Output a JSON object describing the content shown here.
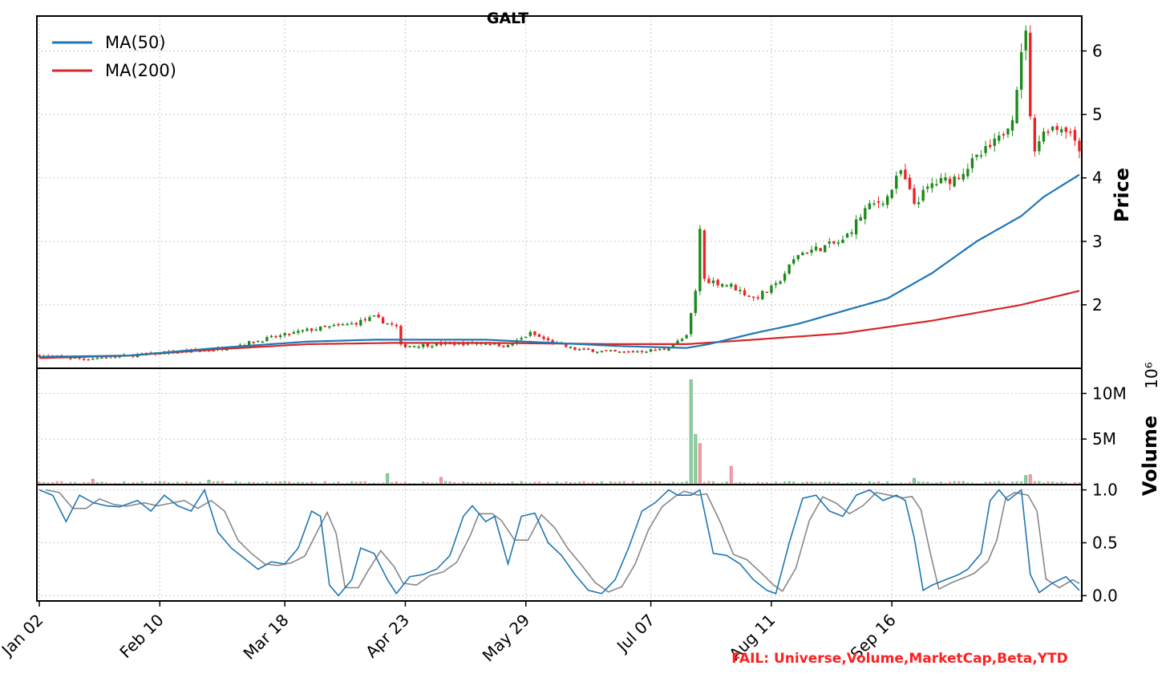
{
  "title": "GALT",
  "status": {
    "text": "FAIL: Universe,Volume,MarketCap,Beta,YTD",
    "color": "#ff2020"
  },
  "colors": {
    "up": "#1a8a1a",
    "down": "#ee2222",
    "vol_up": "#8fcf9f",
    "vol_down": "#f3a0a8",
    "ma50": "#1f77b4",
    "ma200": "#d62728",
    "stoch_k": "#1f77b4",
    "stoch_d": "#888888"
  },
  "chart_data": [
    {
      "type": "candlestick",
      "ylabel": "Price",
      "yticks": [
        "2",
        "3",
        "4",
        "5",
        "6"
      ],
      "xticks": [
        "Jan 02",
        "Feb 10",
        "Mar 18",
        "Apr 23",
        "May 29",
        "Jul 07",
        "Aug 11",
        "Sep 16"
      ],
      "legend": [
        "MA(50)",
        "MA(200)"
      ],
      "legend_position": "top-left",
      "grid": true,
      "anchors": [
        [
          0,
          1.2
        ],
        [
          10,
          1.15
        ],
        [
          20,
          1.2
        ],
        [
          30,
          1.25
        ],
        [
          40,
          1.3
        ],
        [
          50,
          1.45
        ],
        [
          60,
          1.6
        ],
        [
          70,
          1.7
        ],
        [
          75,
          1.8
        ],
        [
          80,
          1.65
        ],
        [
          81,
          1.35
        ],
        [
          90,
          1.38
        ],
        [
          100,
          1.4
        ],
        [
          105,
          1.35
        ],
        [
          110,
          1.55
        ],
        [
          115,
          1.4
        ],
        [
          120,
          1.3
        ],
        [
          130,
          1.25
        ],
        [
          140,
          1.3
        ],
        [
          145,
          1.5
        ],
        [
          147,
          2.2
        ],
        [
          148,
          3.2
        ],
        [
          149,
          2.4
        ],
        [
          155,
          2.3
        ],
        [
          160,
          2.1
        ],
        [
          165,
          2.3
        ],
        [
          170,
          2.8
        ],
        [
          175,
          2.9
        ],
        [
          180,
          3.0
        ],
        [
          185,
          3.5
        ],
        [
          190,
          3.7
        ],
        [
          193,
          4.1
        ],
        [
          196,
          3.6
        ],
        [
          200,
          3.9
        ],
        [
          205,
          4.0
        ],
        [
          210,
          4.3
        ],
        [
          215,
          4.6
        ],
        [
          218,
          5.0
        ],
        [
          220,
          5.9
        ],
        [
          221,
          6.4
        ],
        [
          222,
          4.9
        ],
        [
          223,
          4.5
        ],
        [
          226,
          4.8
        ],
        [
          230,
          4.8
        ],
        [
          233,
          4.5
        ]
      ],
      "ma50": [
        [
          0,
          1.18
        ],
        [
          20,
          1.2
        ],
        [
          40,
          1.32
        ],
        [
          60,
          1.42
        ],
        [
          75,
          1.45
        ],
        [
          100,
          1.45
        ],
        [
          115,
          1.4
        ],
        [
          130,
          1.35
        ],
        [
          145,
          1.32
        ],
        [
          150,
          1.38
        ],
        [
          160,
          1.55
        ],
        [
          170,
          1.7
        ],
        [
          180,
          1.9
        ],
        [
          190,
          2.1
        ],
        [
          200,
          2.5
        ],
        [
          210,
          3.0
        ],
        [
          215,
          3.2
        ],
        [
          220,
          3.4
        ],
        [
          225,
          3.7
        ],
        [
          233,
          4.05
        ]
      ],
      "ma200": [
        [
          0,
          1.16
        ],
        [
          20,
          1.2
        ],
        [
          40,
          1.3
        ],
        [
          60,
          1.38
        ],
        [
          80,
          1.4
        ],
        [
          100,
          1.4
        ],
        [
          130,
          1.38
        ],
        [
          145,
          1.38
        ],
        [
          160,
          1.45
        ],
        [
          180,
          1.55
        ],
        [
          200,
          1.75
        ],
        [
          220,
          2.0
        ],
        [
          233,
          2.22
        ]
      ],
      "y_range": [
        1.0,
        6.55
      ],
      "x_range": [
        0,
        233
      ]
    },
    {
      "type": "bar",
      "ylabel": "Volume",
      "scale_label": "10⁶",
      "yticks": [
        "5M",
        "10M"
      ],
      "spikes": [
        [
          146,
          11.5,
          "up"
        ],
        [
          147,
          5.5,
          "up"
        ],
        [
          148,
          4.5,
          "down"
        ],
        [
          155,
          2.0,
          "down"
        ],
        [
          78,
          1.2,
          "up"
        ],
        [
          90,
          0.8,
          "down"
        ],
        [
          196,
          0.7,
          "up"
        ],
        [
          221,
          1.0,
          "up"
        ],
        [
          222,
          1.1,
          "down"
        ],
        [
          12,
          0.6,
          "down"
        ],
        [
          38,
          0.5,
          "up"
        ]
      ],
      "y_range": [
        0,
        12.5
      ]
    },
    {
      "type": "line",
      "yticks": [
        "0.0",
        "0.5",
        "1.0"
      ],
      "y_range": [
        -0.05,
        1.05
      ],
      "stoch": [
        [
          0,
          1.0
        ],
        [
          3,
          0.95
        ],
        [
          6,
          0.7
        ],
        [
          9,
          0.95
        ],
        [
          12,
          0.88
        ],
        [
          15,
          0.85
        ],
        [
          18,
          0.84
        ],
        [
          22,
          0.9
        ],
        [
          25,
          0.8
        ],
        [
          28,
          0.95
        ],
        [
          31,
          0.85
        ],
        [
          34,
          0.8
        ],
        [
          37,
          1.0
        ],
        [
          40,
          0.6
        ],
        [
          43,
          0.45
        ],
        [
          46,
          0.35
        ],
        [
          49,
          0.25
        ],
        [
          52,
          0.32
        ],
        [
          55,
          0.3
        ],
        [
          58,
          0.45
        ],
        [
          61,
          0.8
        ],
        [
          63,
          0.75
        ],
        [
          65,
          0.1
        ],
        [
          67,
          0.0
        ],
        [
          70,
          0.15
        ],
        [
          72,
          0.45
        ],
        [
          75,
          0.4
        ],
        [
          78,
          0.15
        ],
        [
          80,
          0.02
        ],
        [
          83,
          0.18
        ],
        [
          86,
          0.2
        ],
        [
          89,
          0.25
        ],
        [
          92,
          0.38
        ],
        [
          95,
          0.75
        ],
        [
          97,
          0.85
        ],
        [
          100,
          0.7
        ],
        [
          102,
          0.75
        ],
        [
          105,
          0.3
        ],
        [
          108,
          0.75
        ],
        [
          111,
          0.78
        ],
        [
          114,
          0.5
        ],
        [
          117,
          0.38
        ],
        [
          120,
          0.2
        ],
        [
          123,
          0.05
        ],
        [
          126,
          0.02
        ],
        [
          129,
          0.15
        ],
        [
          132,
          0.45
        ],
        [
          135,
          0.8
        ],
        [
          138,
          0.88
        ],
        [
          141,
          1.0
        ],
        [
          143,
          0.95
        ],
        [
          146,
          0.95
        ],
        [
          148,
          1.0
        ],
        [
          151,
          0.4
        ],
        [
          154,
          0.38
        ],
        [
          157,
          0.3
        ],
        [
          160,
          0.15
        ],
        [
          163,
          0.05
        ],
        [
          165,
          0.02
        ],
        [
          168,
          0.5
        ],
        [
          171,
          0.92
        ],
        [
          174,
          0.95
        ],
        [
          177,
          0.8
        ],
        [
          180,
          0.75
        ],
        [
          183,
          0.95
        ],
        [
          186,
          1.0
        ],
        [
          189,
          0.9
        ],
        [
          192,
          0.95
        ],
        [
          194,
          0.9
        ],
        [
          196,
          0.55
        ],
        [
          198,
          0.05
        ],
        [
          200,
          0.1
        ],
        [
          203,
          0.15
        ],
        [
          206,
          0.2
        ],
        [
          208,
          0.25
        ],
        [
          211,
          0.4
        ],
        [
          213,
          0.9
        ],
        [
          215,
          1.0
        ],
        [
          217,
          0.9
        ],
        [
          220,
          1.0
        ],
        [
          222,
          0.2
        ],
        [
          224,
          0.03
        ],
        [
          227,
          0.12
        ],
        [
          230,
          0.18
        ],
        [
          233,
          0.05
        ]
      ]
    }
  ]
}
